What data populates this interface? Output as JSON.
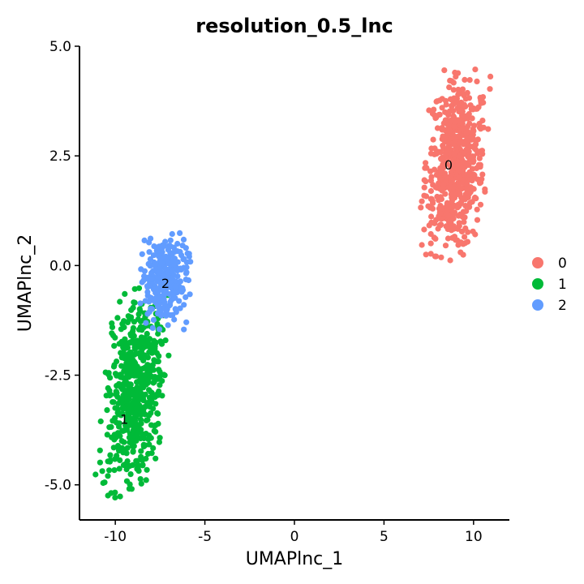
{
  "chart_data": {
    "type": "scatter",
    "title": "resolution_0.5_lnc",
    "xlabel": "UMAPlnc_1",
    "ylabel": "UMAPlnc_2",
    "xlim": [
      -12,
      12
    ],
    "ylim": [
      -5.8,
      5.0
    ],
    "xticks": [
      -10,
      -5,
      0,
      5,
      10
    ],
    "yticks": [
      -5.0,
      -2.5,
      0.0,
      2.5,
      5.0
    ],
    "xtick_labels": [
      "-10",
      "-5",
      "0",
      "5",
      "10"
    ],
    "ytick_labels": [
      "-5.0",
      "-2.5",
      "0.0",
      "2.5",
      "5.0"
    ],
    "legend_position": "right",
    "series": [
      {
        "name": "0",
        "color": "#F8766D",
        "label": "0",
        "label_pos": [
          8.6,
          2.3
        ],
        "cloud": {
          "x_range": [
            7.2,
            10.8
          ],
          "y_range": [
            0.1,
            4.5
          ],
          "n": 620
        }
      },
      {
        "name": "1",
        "color": "#00BA38",
        "label": "1",
        "label_pos": [
          -9.5,
          -3.5
        ],
        "cloud": {
          "x_range": [
            -10.7,
            -7.2
          ],
          "y_range": [
            -5.3,
            -0.5
          ],
          "n": 560
        }
      },
      {
        "name": "2",
        "color": "#619CFF",
        "label": "2",
        "label_pos": [
          -7.2,
          -0.4
        ],
        "cloud": {
          "x_range": [
            -8.8,
            -5.8
          ],
          "y_range": [
            -1.5,
            0.8
          ],
          "n": 280
        }
      }
    ]
  }
}
